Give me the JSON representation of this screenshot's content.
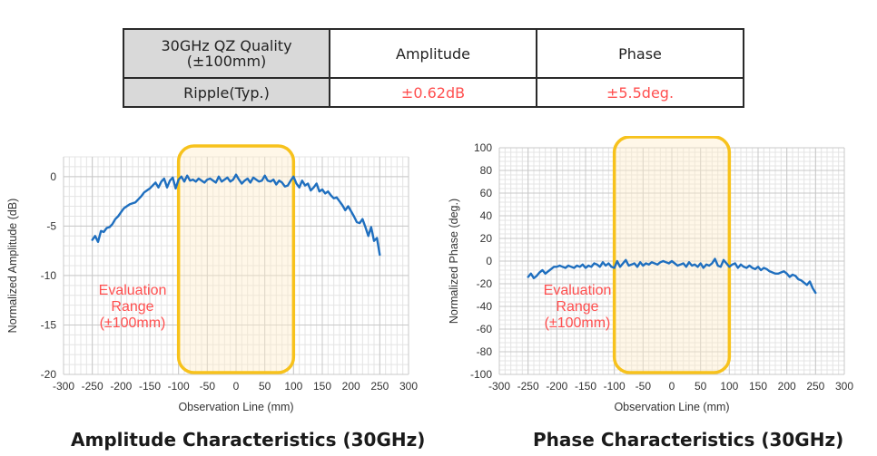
{
  "table": {
    "header": {
      "quality_line1": "30GHz QZ Quality",
      "quality_line2": "(±100mm)",
      "amplitude": "Amplitude",
      "phase": "Phase"
    },
    "row": {
      "label": "Ripple(Typ.)",
      "amplitude": "±0.62dB",
      "phase": "±5.5deg."
    },
    "value_color": "#ff4f4f"
  },
  "chart_data": [
    {
      "type": "line",
      "title": "Amplitude Characteristics (30GHz)",
      "xlabel": "Observation Line (mm)",
      "ylabel": "Normalized Amplitude (dB)",
      "xlim": [
        -300,
        300
      ],
      "ylim": [
        -20,
        2
      ],
      "x_ticks": [
        "-300",
        "-250",
        "-200",
        "-150",
        "-100",
        "-50",
        "0",
        "50",
        "100",
        "150",
        "200",
        "250",
        "300"
      ],
      "y_ticks": [
        "0",
        "-5",
        "-10",
        "-15",
        "-20"
      ],
      "grid": true,
      "line_color": "#1f6fbf",
      "series": [
        {
          "x": [
            -250,
            -245,
            -240,
            -235,
            -230,
            -225,
            -220,
            -215,
            -210,
            -205,
            -200,
            -195,
            -190,
            -185,
            -180,
            -175,
            -170,
            -165,
            -160,
            -155,
            -150,
            -145,
            -140,
            -135,
            -130,
            -125,
            -120,
            -115,
            -110,
            -105,
            -100,
            -95,
            -90,
            -85,
            -80,
            -75,
            -70,
            -65,
            -60,
            -55,
            -50,
            -45,
            -40,
            -35,
            -30,
            -25,
            -20,
            -15,
            -10,
            -5,
            0,
            5,
            10,
            15,
            20,
            25,
            30,
            35,
            40,
            45,
            50,
            55,
            60,
            65,
            70,
            75,
            80,
            85,
            90,
            95,
            100,
            105,
            110,
            115,
            120,
            125,
            130,
            135,
            140,
            145,
            150,
            155,
            160,
            165,
            170,
            175,
            180,
            185,
            190,
            195,
            200,
            205,
            210,
            215,
            220,
            225,
            230,
            235,
            240,
            245,
            250
          ],
          "y": [
            -6.4,
            -6.0,
            -6.6,
            -5.5,
            -5.6,
            -5.2,
            -5.1,
            -4.8,
            -4.3,
            -4.0,
            -3.6,
            -3.2,
            -3.0,
            -2.8,
            -2.7,
            -2.6,
            -2.3,
            -2.0,
            -1.6,
            -1.4,
            -1.2,
            -0.9,
            -0.6,
            -1.1,
            -0.5,
            -0.2,
            -1.1,
            -0.4,
            -0.1,
            -1.2,
            -0.3,
            0.0,
            -0.5,
            0.1,
            -0.4,
            -0.3,
            -0.5,
            -0.2,
            -0.4,
            -0.6,
            -0.3,
            -0.2,
            -0.4,
            -0.6,
            0.0,
            -0.5,
            -0.3,
            -0.1,
            -0.5,
            -0.3,
            0.2,
            -0.3,
            -0.7,
            -0.4,
            -0.2,
            -0.6,
            -0.1,
            -0.3,
            -0.5,
            -0.4,
            0.1,
            -0.4,
            -0.5,
            -0.3,
            -0.8,
            -0.4,
            -0.6,
            -1.0,
            -0.9,
            -0.4,
            0.0,
            -0.7,
            -1.1,
            -0.4,
            -0.9,
            -0.7,
            -1.4,
            -1.1,
            -0.7,
            -1.5,
            -1.3,
            -1.7,
            -1.5,
            -1.9,
            -2.2,
            -2.1,
            -2.5,
            -2.9,
            -3.4,
            -3.0,
            -3.5,
            -4.0,
            -4.6,
            -4.7,
            -4.3,
            -5.1,
            -6.0,
            -5.1,
            -6.5,
            -6.2,
            -7.9
          ]
        }
      ],
      "annotation": {
        "label_line1": "Evaluation",
        "label_line2": "Range",
        "label_line3": "(±100mm)",
        "range": [
          -100,
          100
        ],
        "text_color": "#ff4f4f",
        "box_color": "#f7c21c"
      }
    },
    {
      "type": "line",
      "title": "Phase Characteristics (30GHz)",
      "xlabel": "Observation Line (mm)",
      "ylabel": "Normalized Phase (deg.)",
      "xlim": [
        -300,
        300
      ],
      "ylim": [
        -100,
        100
      ],
      "x_ticks": [
        "-300",
        "-250",
        "-200",
        "-150",
        "-100",
        "-50",
        "0",
        "50",
        "100",
        "150",
        "200",
        "250",
        "300"
      ],
      "y_ticks": [
        "100",
        "80",
        "60",
        "40",
        "20",
        "0",
        "-20",
        "-40",
        "-60",
        "-80",
        "-100"
      ],
      "grid": true,
      "line_color": "#1f6fbf",
      "series": [
        {
          "x": [
            -250,
            -245,
            -240,
            -235,
            -230,
            -225,
            -220,
            -215,
            -210,
            -205,
            -200,
            -195,
            -190,
            -185,
            -180,
            -175,
            -170,
            -165,
            -160,
            -155,
            -150,
            -145,
            -140,
            -135,
            -130,
            -125,
            -120,
            -115,
            -110,
            -105,
            -100,
            -95,
            -90,
            -85,
            -80,
            -75,
            -70,
            -65,
            -60,
            -55,
            -50,
            -45,
            -40,
            -35,
            -30,
            -25,
            -20,
            -15,
            -10,
            -5,
            0,
            5,
            10,
            15,
            20,
            25,
            30,
            35,
            40,
            45,
            50,
            55,
            60,
            65,
            70,
            75,
            80,
            85,
            90,
            95,
            100,
            105,
            110,
            115,
            120,
            125,
            130,
            135,
            140,
            145,
            150,
            155,
            160,
            165,
            170,
            175,
            180,
            185,
            190,
            195,
            200,
            205,
            210,
            215,
            220,
            225,
            230,
            235,
            240,
            245,
            250
          ],
          "y": [
            -14,
            -11,
            -15,
            -13,
            -10,
            -8,
            -11,
            -9,
            -7,
            -5,
            -5,
            -4,
            -5,
            -6,
            -4,
            -5,
            -6,
            -4,
            -5,
            -3,
            -6,
            -4,
            -5,
            -2,
            -3,
            -5,
            -1,
            -4,
            -2,
            -5,
            -6,
            0,
            -5,
            -2,
            1,
            -4,
            -3,
            -2,
            -5,
            -1,
            -4,
            -2,
            -3,
            -1,
            -2,
            -3,
            -1,
            0,
            -1,
            -2,
            0,
            -2,
            -4,
            -3,
            -2,
            -5,
            -1,
            -4,
            -3,
            -5,
            -2,
            -6,
            -3,
            -4,
            -2,
            2,
            -4,
            -5,
            1,
            -2,
            -5,
            -3,
            -2,
            -6,
            -3,
            -5,
            -6,
            -4,
            -6,
            -7,
            -5,
            -8,
            -6,
            -7,
            -9,
            -10,
            -11,
            -11,
            -10,
            -9,
            -11,
            -14,
            -12,
            -13,
            -16,
            -17,
            -19,
            -21,
            -18,
            -24,
            -28
          ]
        }
      ],
      "annotation": {
        "label_line1": "Evaluation",
        "label_line2": "Range",
        "label_line3": "(±100mm)",
        "range": [
          -100,
          100
        ],
        "text_color": "#ff4f4f",
        "box_color": "#f7c21c"
      }
    }
  ]
}
